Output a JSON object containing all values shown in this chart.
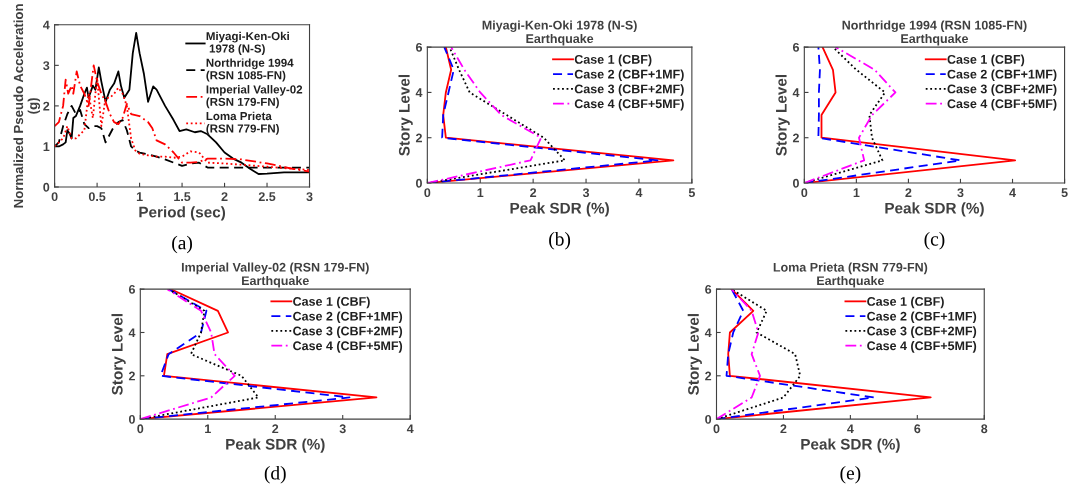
{
  "chart_data": [
    {
      "type": "line",
      "xlabel": "Period (sec)",
      "ylabel": "Normalized Pseudo Acceleration\n(g)",
      "xlim": [
        0,
        3
      ],
      "ylim": [
        0,
        4
      ],
      "xticks": [
        0,
        0.5,
        1,
        1.5,
        2,
        2.5,
        3
      ],
      "yticks": [
        0,
        1,
        2,
        3,
        4
      ],
      "legend": "top right",
      "grid": false,
      "annotations": [
        "(a)"
      ],
      "series": [
        {
          "name": "Miyagi-Ken-Oki\n 1978 (N-S)",
          "color": "#000000",
          "line_style": "solid",
          "x": [
            0,
            0.05,
            0.1,
            0.13,
            0.15,
            0.18,
            0.2,
            0.22,
            0.25,
            0.3,
            0.35,
            0.38,
            0.4,
            0.45,
            0.48,
            0.52,
            0.55,
            0.6,
            0.65,
            0.7,
            0.75,
            0.78,
            0.82,
            0.88,
            0.92,
            0.96,
            1.0,
            1.05,
            1.1,
            1.16,
            1.2,
            1.3,
            1.4,
            1.47,
            1.55,
            1.65,
            1.72,
            1.8,
            1.9,
            2.0,
            2.1,
            2.2,
            2.3,
            2.4,
            2.5,
            2.7,
            3.0
          ],
          "values": [
            1.0,
            1.0,
            1.05,
            1.1,
            1.4,
            1.3,
            1.2,
            1.7,
            1.75,
            2.0,
            2.3,
            2.45,
            2.2,
            2.5,
            2.4,
            2.95,
            2.6,
            2.1,
            2.4,
            2.55,
            2.85,
            2.5,
            2.2,
            2.4,
            3.3,
            3.8,
            3.3,
            2.8,
            2.1,
            2.48,
            2.4,
            2.0,
            1.65,
            1.38,
            1.42,
            1.35,
            1.38,
            1.3,
            1.1,
            0.85,
            0.7,
            0.6,
            0.45,
            0.32,
            0.33,
            0.36,
            0.36
          ]
        },
        {
          "name": "Northridge 1994\n(RSN 1085-FN)",
          "color": "#000000",
          "line_style": "dashed",
          "x": [
            0,
            0.05,
            0.1,
            0.15,
            0.2,
            0.25,
            0.3,
            0.35,
            0.4,
            0.45,
            0.5,
            0.55,
            0.6,
            0.65,
            0.7,
            0.75,
            0.8,
            0.85,
            0.9,
            0.95,
            1.0,
            1.1,
            1.2,
            1.3,
            1.4,
            1.5,
            1.6,
            1.7,
            1.8,
            2.0,
            2.5,
            3.0
          ],
          "values": [
            1.0,
            1.1,
            1.5,
            1.8,
            2.0,
            1.8,
            1.9,
            1.55,
            1.45,
            1.5,
            1.5,
            1.45,
            1.1,
            1.3,
            1.5,
            1.6,
            1.65,
            1.4,
            1.0,
            0.9,
            0.85,
            0.8,
            0.75,
            0.68,
            0.6,
            0.52,
            0.58,
            0.6,
            0.48,
            0.48,
            0.48,
            0.48
          ]
        },
        {
          "name": "Imperial Valley-02\n(RSN 179-FN)",
          "color": "#ff0000",
          "line_style": "dashdot",
          "x": [
            0,
            0.05,
            0.1,
            0.13,
            0.16,
            0.2,
            0.22,
            0.26,
            0.3,
            0.35,
            0.4,
            0.46,
            0.5,
            0.55,
            0.6,
            0.65,
            0.7,
            0.75,
            0.8,
            0.85,
            0.9,
            1.0,
            1.1,
            1.15,
            1.2,
            1.3,
            1.4,
            1.5,
            1.6,
            1.7,
            1.8,
            2.0,
            2.2,
            2.5,
            2.8,
            3.0
          ],
          "values": [
            1.5,
            1.6,
            2.0,
            2.65,
            2.3,
            2.5,
            2.3,
            2.85,
            2.5,
            2.3,
            2.0,
            3.0,
            2.6,
            2.3,
            2.1,
            1.8,
            1.6,
            1.55,
            1.7,
            2.05,
            1.8,
            1.75,
            1.6,
            1.45,
            1.15,
            1.05,
            0.85,
            0.6,
            0.6,
            0.62,
            0.7,
            0.7,
            0.68,
            0.58,
            0.45,
            0.38
          ]
        },
        {
          "name": "Loma Prieta\n(RSN 779-FN)",
          "color": "#ff0000",
          "line_style": "dotted",
          "x": [
            0,
            0.05,
            0.1,
            0.15,
            0.2,
            0.25,
            0.3,
            0.35,
            0.4,
            0.45,
            0.5,
            0.55,
            0.6,
            0.65,
            0.7,
            0.75,
            0.8,
            0.85,
            0.9,
            0.95,
            1.0,
            1.1,
            1.2,
            1.3,
            1.4,
            1.5,
            1.6,
            1.7,
            1.8,
            2.0,
            2.2,
            2.5,
            2.8,
            3.0
          ],
          "values": [
            1.0,
            1.1,
            1.2,
            1.5,
            1.2,
            1.2,
            1.3,
            1.4,
            2.3,
            1.7,
            2.7,
            1.5,
            2.2,
            2.2,
            2.3,
            2.45,
            2.3,
            2.0,
            1.2,
            0.9,
            0.82,
            0.78,
            0.75,
            0.75,
            0.72,
            0.75,
            0.88,
            0.85,
            0.6,
            0.58,
            0.55,
            0.5,
            0.45,
            0.42
          ]
        }
      ]
    },
    {
      "type": "line",
      "title": "Miyagi-Ken-Oki 1978 (N-S)\nEarthquake",
      "xlabel": "Peak SDR (%)",
      "ylabel": "Story Level",
      "xlim": [
        0,
        5
      ],
      "ylim": [
        0,
        6
      ],
      "xticks": [
        0,
        1,
        2,
        3,
        4,
        5
      ],
      "yticks": [
        0,
        2,
        4,
        6
      ],
      "legend": "top right",
      "grid": false,
      "annotations": [
        "(b)"
      ],
      "series": [
        {
          "name": "Case 1 (CBF)",
          "color": "#ff0000",
          "line_style": "solid",
          "x": [
            0,
            4.65,
            0.35,
            0.3,
            0.35,
            0.45,
            0.35
          ],
          "values": [
            0,
            1,
            2,
            3,
            4,
            5,
            6
          ]
        },
        {
          "name": "Case 2 (CBF+1MF)",
          "color": "#0000ff",
          "line_style": "dashed",
          "x": [
            0,
            4.35,
            0.28,
            0.3,
            0.4,
            0.5,
            0.32
          ],
          "values": [
            0,
            1,
            2,
            3,
            4,
            5,
            6
          ]
        },
        {
          "name": "Case 3 (CBF+2MF)",
          "color": "#000000",
          "line_style": "dotted",
          "x": [
            0,
            2.6,
            2.2,
            1.5,
            0.8,
            0.6,
            0.42
          ],
          "values": [
            0,
            1,
            2,
            3,
            4,
            5,
            6
          ]
        },
        {
          "name": "Case 4 (CBF+5MF)",
          "color": "#ff00ff",
          "line_style": "dashdot",
          "x": [
            0,
            1.95,
            2.15,
            1.4,
            1.0,
            0.7,
            0.45
          ],
          "values": [
            0,
            1,
            2,
            3,
            4,
            5,
            6
          ]
        }
      ]
    },
    {
      "type": "line",
      "title": "Northridge 1994 (RSN 1085-FN)\nEarthquake",
      "xlabel": "Peak SDR (%)",
      "ylabel": "Story Level",
      "xlim": [
        0,
        5
      ],
      "ylim": [
        0,
        6
      ],
      "xticks": [
        0,
        1,
        2,
        3,
        4,
        5
      ],
      "yticks": [
        0,
        2,
        4,
        6
      ],
      "legend": "top right",
      "grid": false,
      "annotations": [
        "(c)"
      ],
      "series": [
        {
          "name": "Case 1 (CBF)",
          "color": "#ff0000",
          "line_style": "solid",
          "x": [
            0,
            4.05,
            0.33,
            0.33,
            0.6,
            0.55,
            0.35
          ],
          "values": [
            0,
            1,
            2,
            3,
            4,
            5,
            6
          ]
        },
        {
          "name": "Case 2 (CBF+1MF)",
          "color": "#0000ff",
          "line_style": "dashed",
          "x": [
            0,
            3.0,
            0.27,
            0.28,
            0.28,
            0.3,
            0.27
          ],
          "values": [
            0,
            1,
            2,
            3,
            4,
            5,
            6
          ]
        },
        {
          "name": "Case 3 (CBF+2MF)",
          "color": "#000000",
          "line_style": "dotted",
          "x": [
            0,
            1.5,
            1.3,
            1.25,
            1.55,
            1.0,
            0.55
          ],
          "values": [
            0,
            1,
            2,
            3,
            4,
            5,
            6
          ]
        },
        {
          "name": "Case 4 (CBF+5MF)",
          "color": "#ff00ff",
          "line_style": "dashdot",
          "x": [
            0,
            1.15,
            1.05,
            1.3,
            1.75,
            1.35,
            0.6
          ],
          "values": [
            0,
            1,
            2,
            3,
            4,
            5,
            6
          ]
        }
      ]
    },
    {
      "type": "line",
      "title": "Imperial Valley-02 (RSN 179-FN)\nEarthquake",
      "xlabel": "Peak SDR (%)",
      "ylabel": "Story Level",
      "xlim": [
        0,
        4
      ],
      "ylim": [
        0,
        6
      ],
      "xticks": [
        0,
        1,
        2,
        3,
        4
      ],
      "yticks": [
        0,
        2,
        4,
        6
      ],
      "legend": "top right",
      "grid": false,
      "annotations": [
        "(d)"
      ],
      "series": [
        {
          "name": "Case 1 (CBF)",
          "color": "#ff0000",
          "line_style": "solid",
          "x": [
            0,
            3.5,
            0.35,
            0.4,
            1.3,
            1.15,
            0.45
          ],
          "values": [
            0,
            1,
            2,
            3,
            4,
            5,
            6
          ]
        },
        {
          "name": "Case 2 (CBF+1MF)",
          "color": "#0000ff",
          "line_style": "dashed",
          "x": [
            0,
            3.1,
            0.3,
            0.42,
            0.9,
            0.98,
            0.42
          ],
          "values": [
            0,
            1,
            2,
            3,
            4,
            5,
            6
          ]
        },
        {
          "name": "Case 3 (CBF+2MF)",
          "color": "#000000",
          "line_style": "dotted",
          "x": [
            0,
            1.75,
            1.5,
            0.75,
            0.9,
            0.95,
            0.42
          ],
          "values": [
            0,
            1,
            2,
            3,
            4,
            5,
            6
          ]
        },
        {
          "name": "Case 4 (CBF+5MF)",
          "color": "#ff00ff",
          "line_style": "dashdot",
          "x": [
            0,
            1.05,
            1.4,
            1.1,
            1.05,
            0.9,
            0.4
          ],
          "values": [
            0,
            1,
            2,
            3,
            4,
            5,
            6
          ]
        }
      ]
    },
    {
      "type": "line",
      "title": "Loma Prieta (RSN 779-FN)\nEarthquake",
      "xlabel": "Peak SDR (%)",
      "ylabel": "Story Level",
      "xlim": [
        0,
        8
      ],
      "ylim": [
        0,
        6
      ],
      "xticks": [
        0,
        2,
        4,
        6,
        8
      ],
      "yticks": [
        0,
        2,
        4,
        6
      ],
      "legend": "top right",
      "grid": false,
      "annotations": [
        "(e)"
      ],
      "series": [
        {
          "name": "Case 1 (CBF)",
          "color": "#ff0000",
          "line_style": "solid",
          "x": [
            0,
            6.4,
            0.4,
            0.35,
            0.4,
            1.1,
            0.45
          ],
          "values": [
            0,
            1,
            2,
            3,
            4,
            5,
            6
          ]
        },
        {
          "name": "Case 2 (CBF+1MF)",
          "color": "#0000ff",
          "line_style": "dashed",
          "x": [
            0,
            4.7,
            0.3,
            0.35,
            0.5,
            0.8,
            0.45
          ],
          "values": [
            0,
            1,
            2,
            3,
            4,
            5,
            6
          ]
        },
        {
          "name": "Case 3 (CBF+2MF)",
          "color": "#000000",
          "line_style": "dotted",
          "x": [
            0,
            2.0,
            2.5,
            2.35,
            1.2,
            1.5,
            0.45
          ],
          "values": [
            0,
            1,
            2,
            3,
            4,
            5,
            6
          ]
        },
        {
          "name": "Case 4 (CBF+5MF)",
          "color": "#ff00ff",
          "line_style": "dashdot",
          "x": [
            0,
            1.05,
            1.3,
            1.05,
            1.25,
            1.05,
            0.45
          ],
          "values": [
            0,
            1,
            2,
            3,
            4,
            5,
            6
          ]
        }
      ]
    }
  ]
}
